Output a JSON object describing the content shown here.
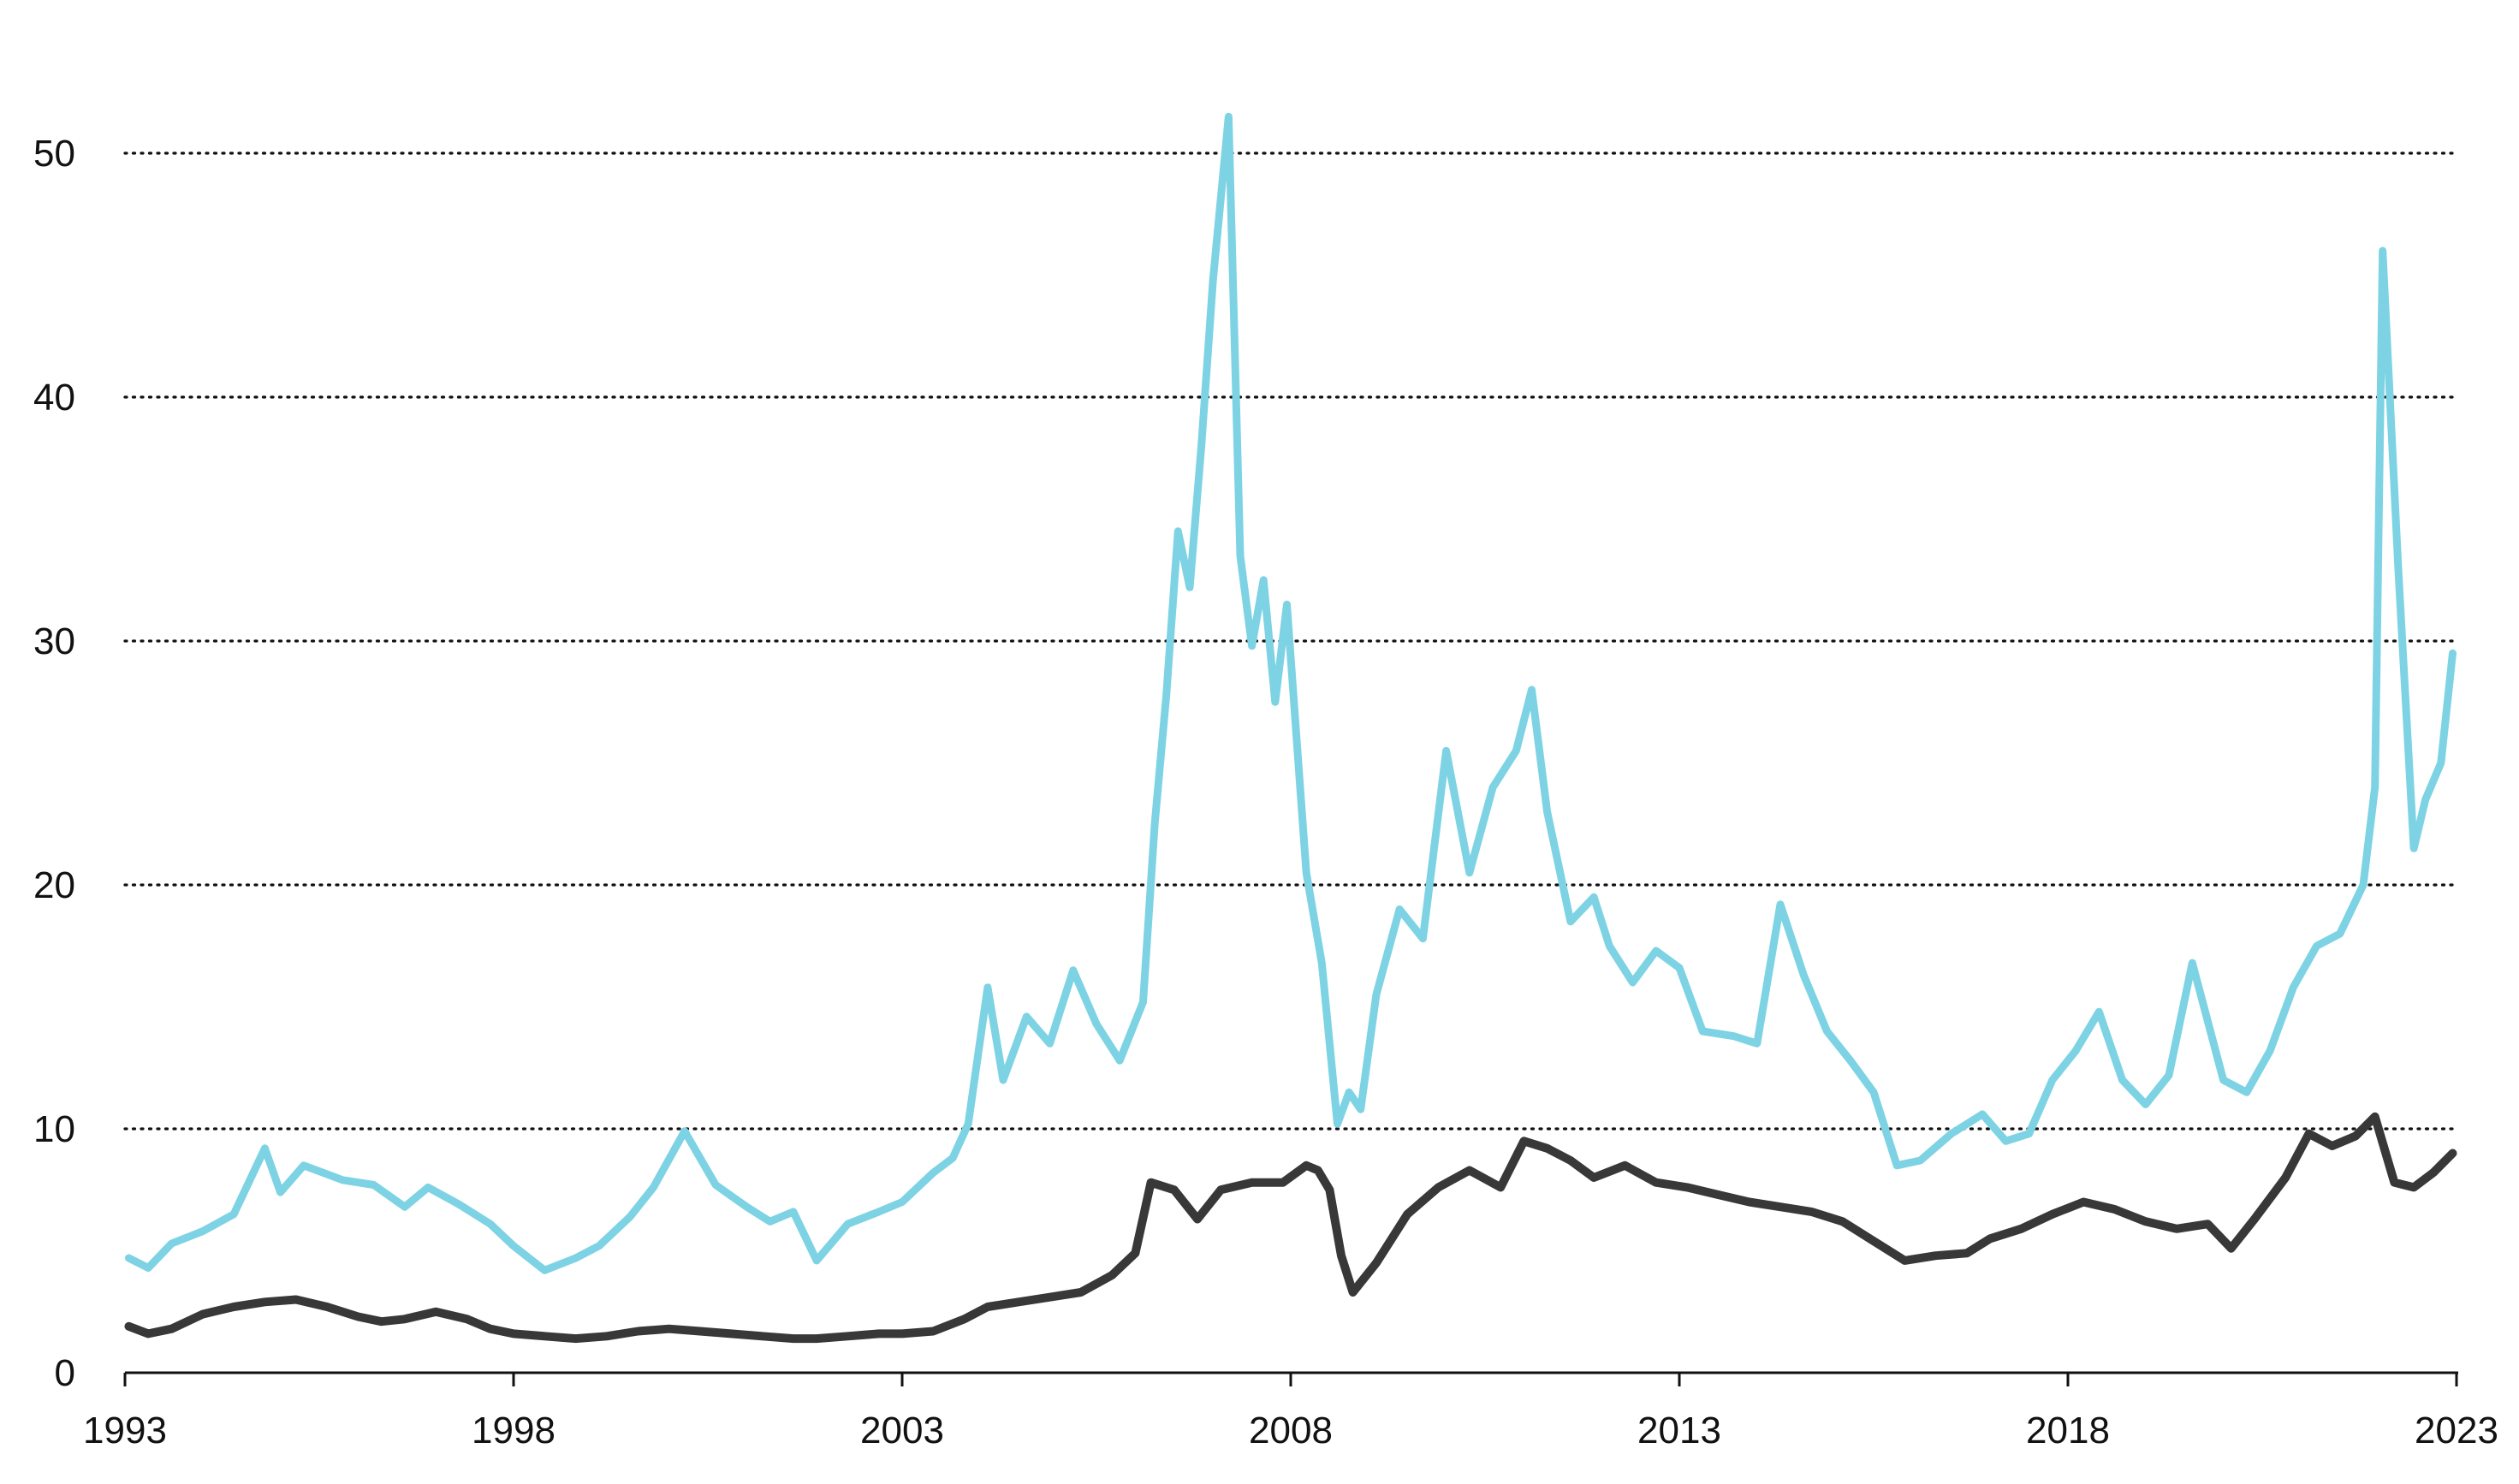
{
  "chart_data": {
    "type": "line",
    "title": "",
    "xlabel": "",
    "ylabel": "",
    "xlim": [
      1993.0,
      2023.0
    ],
    "ylim": [
      0,
      55
    ],
    "grid": true,
    "legend": "none",
    "colors": {
      "series_1": "#7dd3e3",
      "series_2": "#383838",
      "grid": "#111111",
      "axis": "#111111",
      "text": "#111111"
    },
    "x_ticks": [
      {
        "value": 1993,
        "label": "1993"
      },
      {
        "value": 1998,
        "label": "1998"
      },
      {
        "value": 2003,
        "label": "2003"
      },
      {
        "value": 2008,
        "label": "2008"
      },
      {
        "value": 2013,
        "label": "2013"
      },
      {
        "value": 2018,
        "label": "2018"
      },
      {
        "value": 2023,
        "label": "2023"
      }
    ],
    "y_ticks": [
      {
        "value": 0,
        "label": "0"
      },
      {
        "value": 10,
        "label": "10"
      },
      {
        "value": 20,
        "label": "20"
      },
      {
        "value": 30,
        "label": "30"
      },
      {
        "value": 40,
        "label": "40"
      },
      {
        "value": 50,
        "label": "50"
      }
    ],
    "series": [
      {
        "name": "Light blue series",
        "color": "#7dd3e3",
        "x": [
          1993.05,
          1993.3,
          1993.6,
          1994.0,
          1994.4,
          1994.8,
          1995.0,
          1995.3,
          1995.8,
          1996.2,
          1996.6,
          1996.9,
          1997.3,
          1997.7,
          1998.0,
          1998.4,
          1998.8,
          1999.1,
          1999.5,
          1999.8,
          2000.2,
          2000.6,
          2001.0,
          2001.3,
          2001.6,
          2001.9,
          2002.3,
          2002.7,
          2003.0,
          2003.4,
          2003.65,
          2003.85,
          2004.1,
          2004.3,
          2004.6,
          2004.9,
          2005.2,
          2005.5,
          2005.8,
          2006.1,
          2006.25,
          2006.4,
          2006.55,
          2006.7,
          2006.85,
          2007.0,
          2007.2,
          2007.35,
          2007.5,
          2007.65,
          2007.8,
          2007.95,
          2008.2,
          2008.4,
          2008.6,
          2008.75,
          2008.9,
          2009.1,
          2009.4,
          2009.7,
          2010.0,
          2010.3,
          2010.6,
          2010.9,
          2011.1,
          2011.3,
          2011.6,
          2011.9,
          2012.1,
          2012.4,
          2012.7,
          2013.0,
          2013.3,
          2013.7,
          2014.0,
          2014.3,
          2014.6,
          2014.9,
          2015.2,
          2015.5,
          2015.8,
          2016.1,
          2016.5,
          2016.9,
          2017.2,
          2017.5,
          2017.8,
          2018.1,
          2018.4,
          2018.7,
          2019.0,
          2019.3,
          2019.6,
          2020.0,
          2020.3,
          2020.6,
          2020.9,
          2021.2,
          2021.5,
          2021.8,
          2021.95,
          2022.05,
          2022.25,
          2022.45,
          2022.6,
          2022.8,
          2022.95
        ],
        "values": [
          4.7,
          4.3,
          5.3,
          5.8,
          6.5,
          9.2,
          7.4,
          8.5,
          7.9,
          7.7,
          6.8,
          7.6,
          6.9,
          6.1,
          5.2,
          4.2,
          4.7,
          5.2,
          6.4,
          7.6,
          9.9,
          7.7,
          6.8,
          6.2,
          6.6,
          4.6,
          6.1,
          6.6,
          7.0,
          8.2,
          8.8,
          10.2,
          15.8,
          12.0,
          14.6,
          13.5,
          16.5,
          14.3,
          12.8,
          15.2,
          22.5,
          27.8,
          34.5,
          32.2,
          38.0,
          44.8,
          51.5,
          33.5,
          29.8,
          32.5,
          27.5,
          31.5,
          20.5,
          16.8,
          10.2,
          11.5,
          10.8,
          15.5,
          19.0,
          17.8,
          25.5,
          20.5,
          24.0,
          25.5,
          28.0,
          23.0,
          18.5,
          19.5,
          17.5,
          16.0,
          17.3,
          16.6,
          14.0,
          13.8,
          13.5,
          19.2,
          16.3,
          14.0,
          12.8,
          11.5,
          8.5,
          8.7,
          9.8,
          10.6,
          9.5,
          9.8,
          12.0,
          13.2,
          14.8,
          12.0,
          11.0,
          12.2,
          16.8,
          12.0,
          11.5,
          13.2,
          15.8,
          17.5,
          18.0,
          20.0,
          24.0,
          46.0,
          33.0,
          21.5,
          23.5,
          25.0,
          29.5
        ]
      },
      {
        "name": "Dark series",
        "color": "#383838",
        "x": [
          1993.05,
          1993.3,
          1993.6,
          1994.0,
          1994.4,
          1994.8,
          1995.2,
          1995.6,
          1996.0,
          1996.3,
          1996.6,
          1997.0,
          1997.4,
          1997.7,
          1998.0,
          1998.4,
          1998.8,
          1999.2,
          1999.6,
          2000.0,
          2000.4,
          2000.8,
          2001.2,
          2001.6,
          2001.9,
          2002.3,
          2002.7,
          2003.0,
          2003.4,
          2003.8,
          2004.1,
          2004.5,
          2004.9,
          2005.3,
          2005.7,
          2006.0,
          2006.2,
          2006.5,
          2006.8,
          2007.1,
          2007.5,
          2007.9,
          2008.2,
          2008.35,
          2008.5,
          2008.65,
          2008.8,
          2009.1,
          2009.5,
          2009.9,
          2010.3,
          2010.7,
          2011.0,
          2011.3,
          2011.6,
          2011.9,
          2012.3,
          2012.7,
          2013.1,
          2013.5,
          2013.9,
          2014.3,
          2014.7,
          2015.1,
          2015.5,
          2015.9,
          2016.3,
          2016.7,
          2017.0,
          2017.4,
          2017.8,
          2018.2,
          2018.6,
          2019.0,
          2019.4,
          2019.8,
          2020.1,
          2020.4,
          2020.8,
          2021.1,
          2021.4,
          2021.7,
          2021.95,
          2022.2,
          2022.45,
          2022.7,
          2022.95
        ],
        "values": [
          1.9,
          1.6,
          1.8,
          2.4,
          2.7,
          2.9,
          3.0,
          2.7,
          2.3,
          2.1,
          2.2,
          2.5,
          2.2,
          1.8,
          1.6,
          1.5,
          1.4,
          1.5,
          1.7,
          1.8,
          1.7,
          1.6,
          1.5,
          1.4,
          1.4,
          1.5,
          1.6,
          1.6,
          1.7,
          2.2,
          2.7,
          2.9,
          3.1,
          3.3,
          4.0,
          4.9,
          7.8,
          7.5,
          6.3,
          7.5,
          7.8,
          7.8,
          8.5,
          8.3,
          7.5,
          4.8,
          3.3,
          4.5,
          6.5,
          7.6,
          8.3,
          7.6,
          9.5,
          9.2,
          8.7,
          8.0,
          8.5,
          7.8,
          7.6,
          7.3,
          7.0,
          6.8,
          6.6,
          6.2,
          5.4,
          4.6,
          4.8,
          4.9,
          5.5,
          5.9,
          6.5,
          7.0,
          6.7,
          6.2,
          5.9,
          6.1,
          5.1,
          6.3,
          8.0,
          9.8,
          9.3,
          9.7,
          10.5,
          7.8,
          7.6,
          8.2,
          9.0
        ]
      }
    ]
  }
}
